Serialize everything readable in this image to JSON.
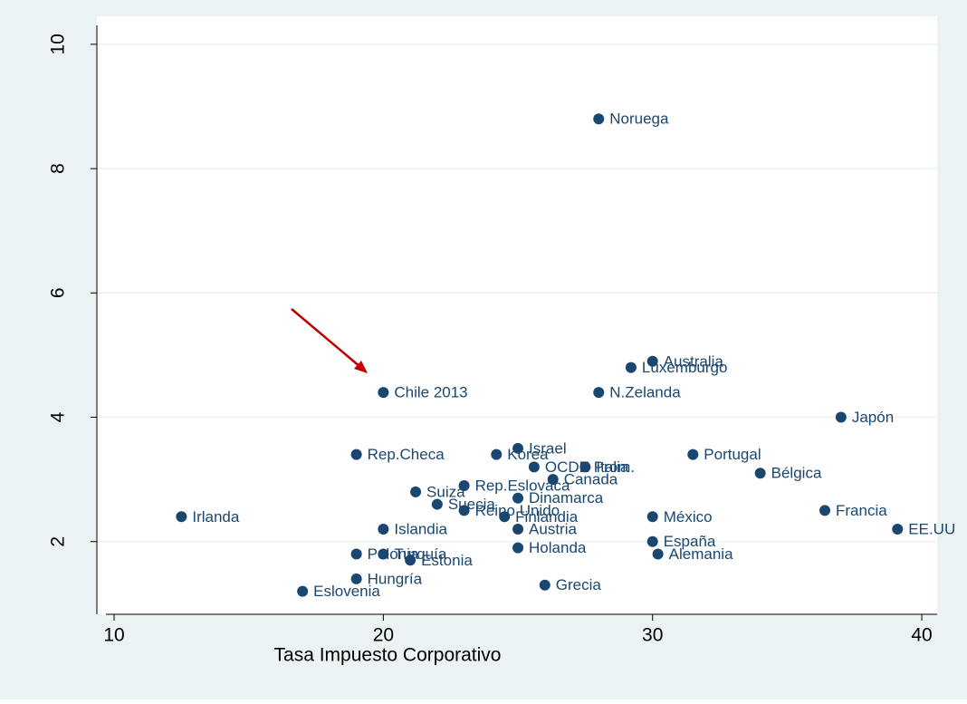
{
  "chart_data": {
    "type": "scatter",
    "x_label": "Tasa Impuesto Corporativo",
    "labels": [
      "Noruega",
      "Australia",
      "Luxemburgo",
      "Chile 2013",
      "N.Zelanda",
      "Japón",
      "Israel",
      "Rep.Checa",
      "Korea",
      "Portugal",
      "OCDE Prom.",
      "Italia",
      "Bélgica",
      "Canada",
      "Rep.Eslovaca",
      "Suiza",
      "Dinamarca",
      "Suecia",
      "Reino Unido",
      "Finlandia",
      "Irlanda",
      "Francia",
      "México",
      "EE.UU",
      "Islandia",
      "Austria",
      "España",
      "Holanda",
      "Alemania",
      "Polonia",
      "Turquía",
      "Estonia",
      "Hungría",
      "Grecia",
      "Eslovenia"
    ],
    "x": [
      28.0,
      30.0,
      29.2,
      20.0,
      28.0,
      37.0,
      25.0,
      19.0,
      24.2,
      31.5,
      25.6,
      27.5,
      34.0,
      26.3,
      23.0,
      21.2,
      25.0,
      22.0,
      23.0,
      24.5,
      12.5,
      36.4,
      30.0,
      39.1,
      20.0,
      25.0,
      30.0,
      25.0,
      30.2,
      19.0,
      20.0,
      21.0,
      19.0,
      26.0,
      17.0
    ],
    "values": [
      8.8,
      4.9,
      4.8,
      4.4,
      4.4,
      4.0,
      3.5,
      3.4,
      3.4,
      3.4,
      3.2,
      3.2,
      3.1,
      3.0,
      2.9,
      2.8,
      2.7,
      2.6,
      2.5,
      2.4,
      2.4,
      2.5,
      2.4,
      2.2,
      2.2,
      2.2,
      2.0,
      1.9,
      1.8,
      1.8,
      1.8,
      1.7,
      1.4,
      1.3,
      1.2
    ],
    "color": "#1a476f",
    "xlim": [
      9.36,
      40.57
    ],
    "xticks": [
      10,
      20,
      30,
      40
    ],
    "ylim": [
      0.83,
      10.45
    ],
    "yticks": [
      2,
      4,
      6,
      8,
      10
    ],
    "grid": true
  }
}
